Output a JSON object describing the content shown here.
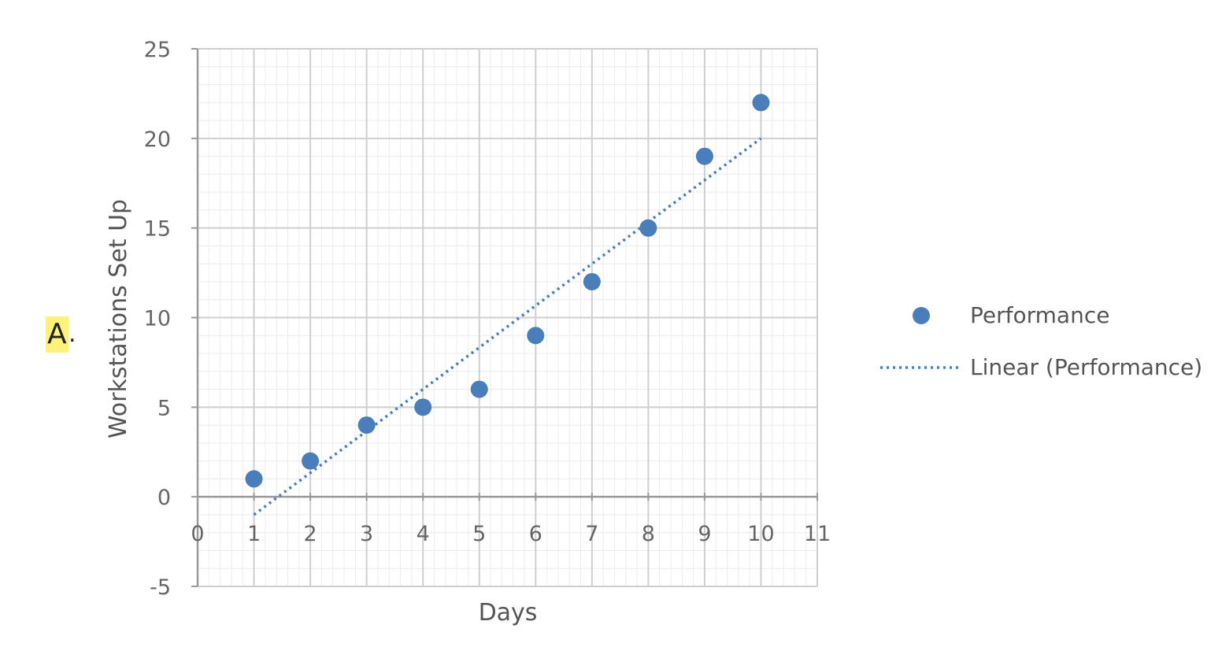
{
  "option": {
    "label": "A",
    "suffix": "."
  },
  "chart_data": {
    "type": "scatter",
    "xlabel": "Days",
    "ylabel": "Workstations Set Up",
    "xlim": [
      0,
      11
    ],
    "ylim": [
      -5,
      25
    ],
    "xticks": [
      0,
      1,
      2,
      3,
      4,
      5,
      6,
      7,
      8,
      9,
      10,
      11
    ],
    "yticks": [
      -5,
      0,
      5,
      10,
      15,
      20,
      25
    ],
    "grid": true,
    "minor_grid": true,
    "legend_position": "right",
    "series": [
      {
        "name": "Performance",
        "marker": "circle",
        "color": "#4a7ebb",
        "x": [
          1,
          2,
          3,
          4,
          5,
          6,
          7,
          8,
          9,
          10
        ],
        "y": [
          1,
          2,
          4,
          5,
          6,
          9,
          12,
          15,
          19,
          22
        ]
      }
    ],
    "trendline": {
      "name": "Linear (Performance)",
      "style": "dotted",
      "color": "#4a7ebb",
      "x": [
        1,
        10
      ],
      "y": [
        -1,
        20
      ]
    }
  }
}
